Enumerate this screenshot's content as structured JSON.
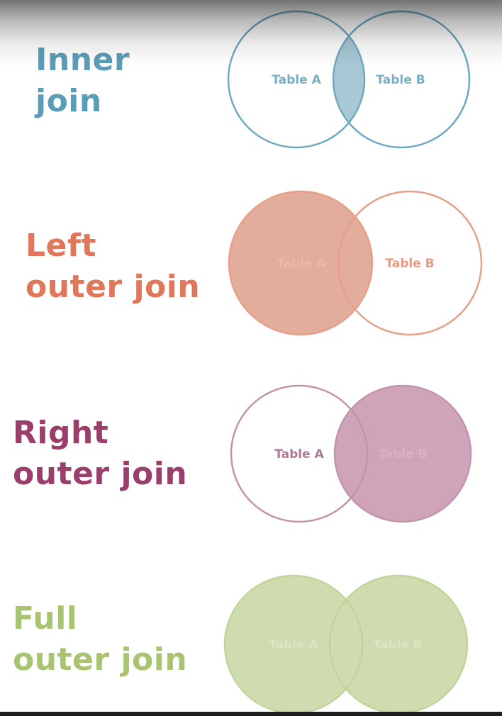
{
  "joins": [
    {
      "id": "inner",
      "title_line1": "Inner",
      "title_line2": "join",
      "label_a": "Table A",
      "label_b": "Table B",
      "color": "#5b9db8",
      "fill": "#a9c8d6",
      "fills": "intersection"
    },
    {
      "id": "left",
      "title_line1": "Left",
      "title_line2": "outer join",
      "label_a": "Table A",
      "label_b": "Table B",
      "color": "#e1775a",
      "fill": "#e3ad9b",
      "fills": "a"
    },
    {
      "id": "right",
      "title_line1": "Right",
      "title_line2": "outer join",
      "label_a": "Table A",
      "label_b": "Table B",
      "color": "#9a3f6b",
      "fill": "#cfa4b9",
      "fills": "b"
    },
    {
      "id": "full",
      "title_line1": "Full",
      "title_line2": "outer join",
      "label_a": "Table A",
      "label_b": "Table B",
      "color": "#a8c471",
      "fill": "#cfdcaf",
      "fills": "both"
    }
  ]
}
